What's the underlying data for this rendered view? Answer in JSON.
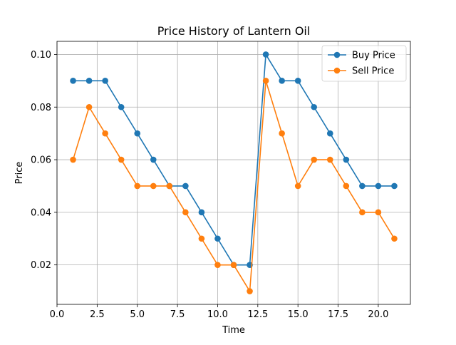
{
  "chart_data": {
    "type": "line",
    "title": "Price History of Lantern Oil",
    "xlabel": "Time",
    "ylabel": "Price",
    "xlim": [
      0,
      22
    ],
    "ylim": [
      0.005,
      0.105
    ],
    "xticks": [
      0,
      2.5,
      5,
      7.5,
      10,
      12.5,
      15,
      17.5,
      20
    ],
    "xtick_labels": [
      "0.0",
      "2.5",
      "5.0",
      "7.5",
      "10.0",
      "12.5",
      "15.0",
      "17.5",
      "20.0"
    ],
    "yticks": [
      0.02,
      0.04,
      0.06,
      0.08,
      0.1
    ],
    "ytick_labels": [
      "0.02",
      "0.04",
      "0.06",
      "0.08",
      "0.10"
    ],
    "grid": true,
    "legend_position": "top-right",
    "x": [
      1,
      2,
      3,
      4,
      5,
      6,
      7,
      8,
      9,
      10,
      11,
      12,
      13,
      14,
      15,
      16,
      17,
      18,
      19,
      20,
      21
    ],
    "series": [
      {
        "name": "Buy Price",
        "color": "#1f77b4",
        "marker": "circle",
        "values": [
          0.09,
          0.09,
          0.09,
          0.08,
          0.07,
          0.06,
          0.05,
          0.05,
          0.04,
          0.03,
          0.02,
          0.02,
          0.1,
          0.09,
          0.09,
          0.08,
          0.07,
          0.06,
          0.05,
          0.05,
          0.05
        ]
      },
      {
        "name": "Sell Price",
        "color": "#ff7f0e",
        "marker": "circle",
        "values": [
          0.06,
          0.08,
          0.07,
          0.06,
          0.05,
          0.05,
          0.05,
          0.04,
          0.03,
          0.02,
          0.02,
          0.01,
          0.09,
          0.07,
          0.05,
          0.06,
          0.06,
          0.05,
          0.04,
          0.04,
          0.03
        ]
      }
    ]
  }
}
